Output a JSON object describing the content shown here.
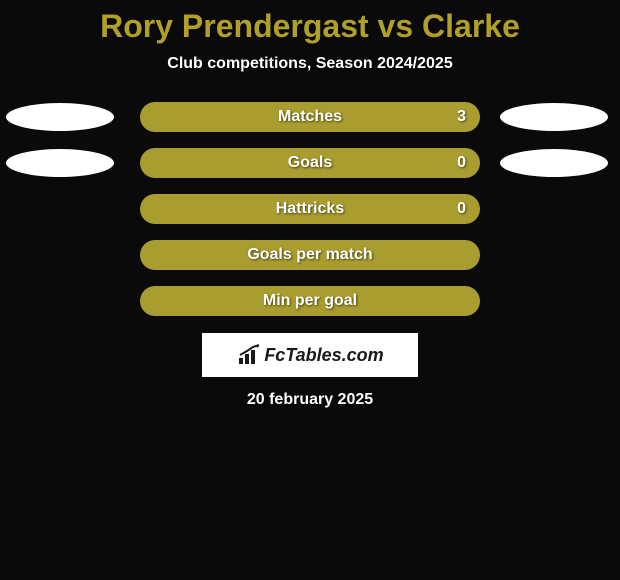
{
  "title": "Rory Prendergast vs Clarke",
  "title_color": "#b0a028",
  "subtitle": "Club competitions, Season 2024/2025",
  "background_color": "#0a0a0a",
  "bar_color": "#a99d2f",
  "ellipse_color": "#ffffff",
  "text_color": "#ffffff",
  "rows": [
    {
      "label": "Matches",
      "value": "3",
      "show_left_ellipse": true,
      "show_right_ellipse": true
    },
    {
      "label": "Goals",
      "value": "0",
      "show_left_ellipse": true,
      "show_right_ellipse": true
    },
    {
      "label": "Hattricks",
      "value": "0",
      "show_left_ellipse": false,
      "show_right_ellipse": false
    },
    {
      "label": "Goals per match",
      "value": "",
      "show_left_ellipse": false,
      "show_right_ellipse": false
    },
    {
      "label": "Min per goal",
      "value": "",
      "show_left_ellipse": false,
      "show_right_ellipse": false
    }
  ],
  "logo_text": "FcTables.com",
  "date": "20 february 2025",
  "fonts": {
    "title_size": 32,
    "subtitle_size": 16,
    "label_size": 16,
    "date_size": 16
  }
}
